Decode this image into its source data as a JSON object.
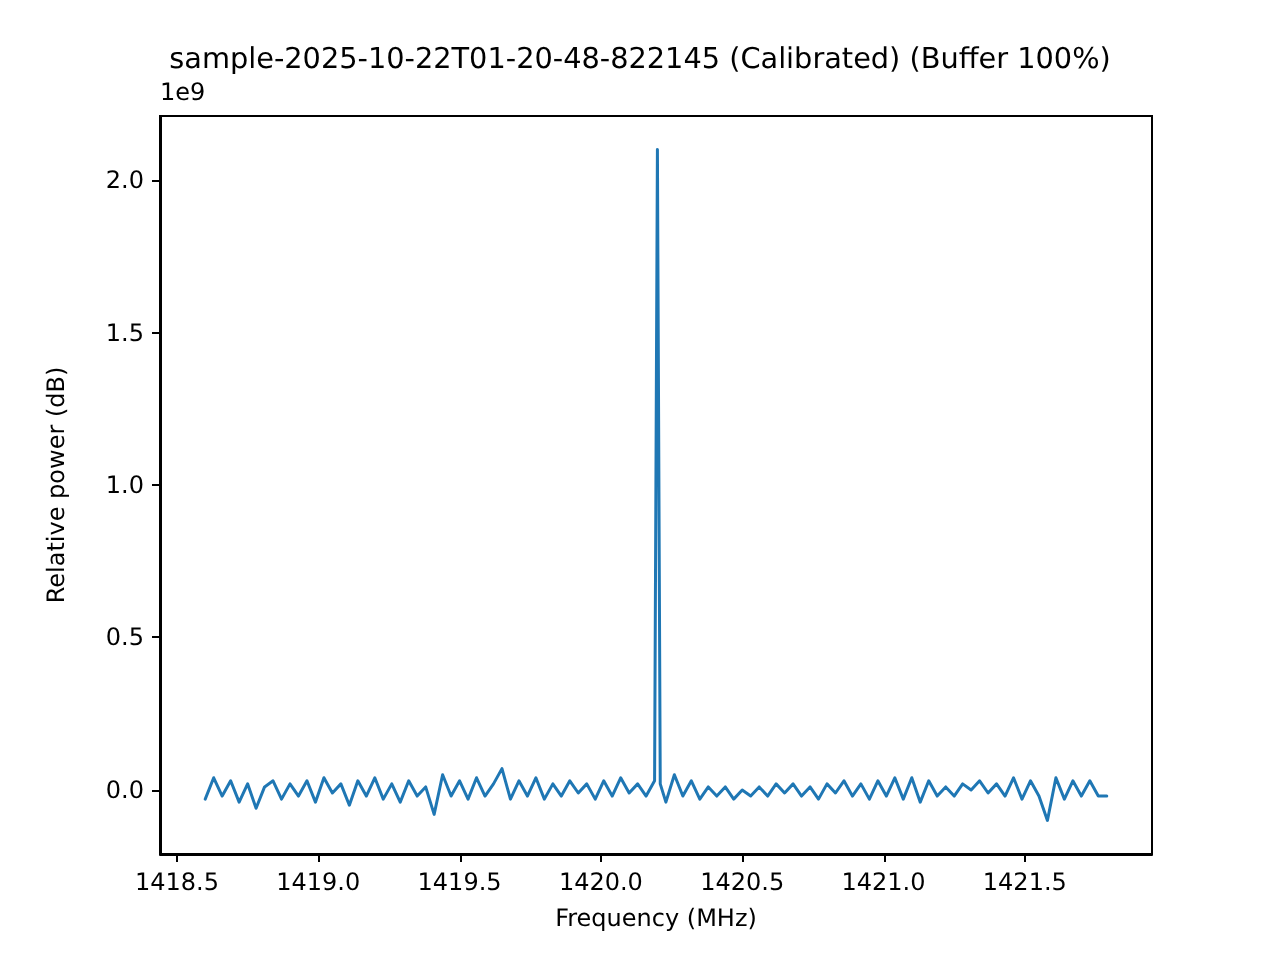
{
  "chart_data": {
    "type": "line",
    "title": "sample-2025-10-22T01-20-48-822145 (Calibrated) (Buffer 100%)",
    "xlabel": "Frequency (MHz)",
    "ylabel": "Relative power (dB)",
    "annotations": [
      "1e9"
    ],
    "x": [
      1418.6,
      1418.63,
      1418.66,
      1418.69,
      1418.72,
      1418.75,
      1418.78,
      1418.81,
      1418.84,
      1418.87,
      1418.9,
      1418.93,
      1418.96,
      1418.99,
      1419.02,
      1419.05,
      1419.08,
      1419.11,
      1419.14,
      1419.17,
      1419.2,
      1419.23,
      1419.26,
      1419.29,
      1419.32,
      1419.35,
      1419.38,
      1419.41,
      1419.44,
      1419.47,
      1419.5,
      1419.53,
      1419.56,
      1419.59,
      1419.62,
      1419.65,
      1419.68,
      1419.71,
      1419.74,
      1419.77,
      1419.8,
      1419.83,
      1419.86,
      1419.89,
      1419.92,
      1419.95,
      1419.98,
      1420.01,
      1420.04,
      1420.07,
      1420.1,
      1420.13,
      1420.16,
      1420.19,
      1420.2,
      1420.21,
      1420.23,
      1420.26,
      1420.29,
      1420.32,
      1420.35,
      1420.38,
      1420.41,
      1420.44,
      1420.47,
      1420.5,
      1420.53,
      1420.56,
      1420.59,
      1420.62,
      1420.65,
      1420.68,
      1420.71,
      1420.74,
      1420.77,
      1420.8,
      1420.83,
      1420.86,
      1420.89,
      1420.92,
      1420.95,
      1420.98,
      1421.01,
      1421.04,
      1421.07,
      1421.1,
      1421.13,
      1421.16,
      1421.19,
      1421.22,
      1421.25,
      1421.28,
      1421.31,
      1421.34,
      1421.37,
      1421.4,
      1421.43,
      1421.46,
      1421.49,
      1421.52,
      1421.55,
      1421.58,
      1421.61,
      1421.64,
      1421.67,
      1421.7,
      1421.73,
      1421.76,
      1421.79
    ],
    "series": [
      {
        "color": "#1f77b4",
        "values": [
          -0.03,
          0.04,
          -0.02,
          0.03,
          -0.04,
          0.02,
          -0.06,
          0.01,
          0.03,
          -0.03,
          0.02,
          -0.02,
          0.03,
          -0.04,
          0.04,
          -0.01,
          0.02,
          -0.05,
          0.03,
          -0.02,
          0.04,
          -0.03,
          0.02,
          -0.04,
          0.03,
          -0.02,
          0.01,
          -0.08,
          0.05,
          -0.02,
          0.03,
          -0.03,
          0.04,
          -0.02,
          0.02,
          0.07,
          -0.03,
          0.03,
          -0.02,
          0.04,
          -0.03,
          0.02,
          -0.02,
          0.03,
          -0.01,
          0.02,
          -0.03,
          0.03,
          -0.02,
          0.04,
          -0.01,
          0.02,
          -0.02,
          0.03,
          2.1,
          0.02,
          -0.04,
          0.05,
          -0.02,
          0.03,
          -0.03,
          0.01,
          -0.02,
          0.01,
          -0.03,
          0.0,
          -0.02,
          0.01,
          -0.02,
          0.02,
          -0.01,
          0.02,
          -0.02,
          0.01,
          -0.03,
          0.02,
          -0.01,
          0.03,
          -0.02,
          0.02,
          -0.03,
          0.03,
          -0.02,
          0.04,
          -0.03,
          0.04,
          -0.04,
          0.03,
          -0.02,
          0.01,
          -0.02,
          0.02,
          0.0,
          0.03,
          -0.01,
          0.02,
          -0.02,
          0.04,
          -0.03,
          0.03,
          -0.02,
          -0.1,
          0.04,
          -0.03,
          0.03,
          -0.02,
          0.03,
          -0.02,
          -0.02
        ]
      }
    ],
    "xlim": [
      1418.44,
      1421.95
    ],
    "xticks": [
      {
        "value": 1418.5,
        "label": "1418.5"
      },
      {
        "value": 1419,
        "label": "1419.0"
      },
      {
        "value": 1419.5,
        "label": "1419.5"
      },
      {
        "value": 1420,
        "label": "1420.0"
      },
      {
        "value": 1420.5,
        "label": "1420.5"
      },
      {
        "value": 1421,
        "label": "1421.0"
      },
      {
        "value": 1421.5,
        "label": "1421.5"
      }
    ],
    "ylim": [
      -0.21,
      2.21
    ],
    "yticks": [
      {
        "value": 0,
        "label": "0.0"
      },
      0.5,
      {
        "value": 1,
        "label": "1.0"
      },
      1.5,
      {
        "value": 2,
        "label": "2.0"
      }
    ],
    "grid": false,
    "marker": "none",
    "line_style": "solid"
  }
}
